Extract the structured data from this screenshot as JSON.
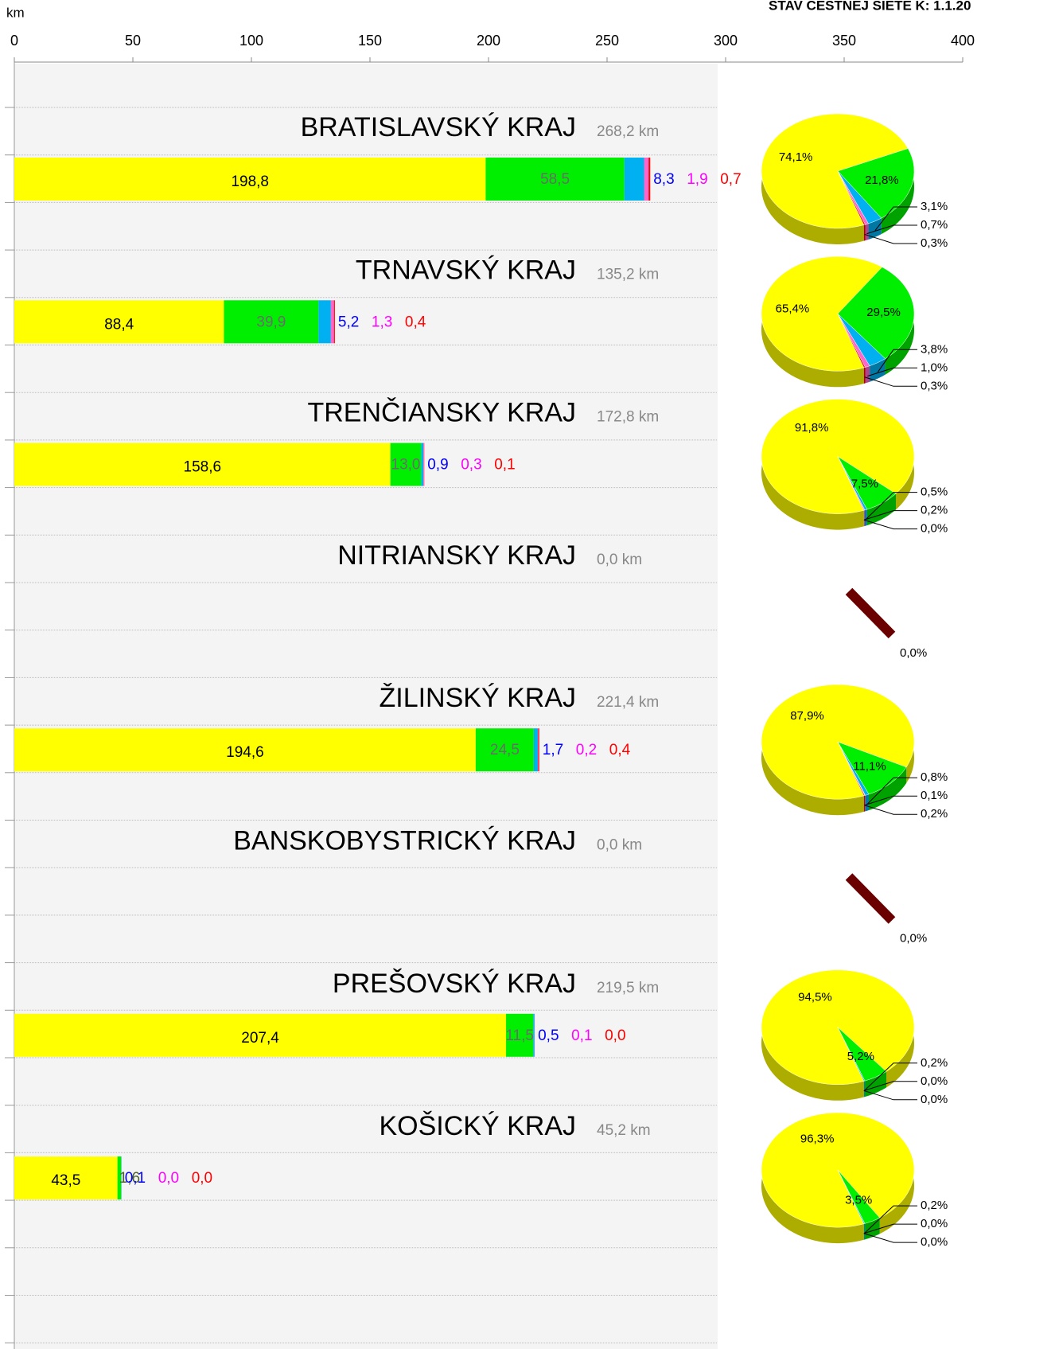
{
  "chart_data": {
    "type": "bar",
    "title": "STAV CESTNEJ SIETE K: 1.1.20",
    "x_label": "km",
    "xlim": [
      0,
      400
    ],
    "xticks": [
      0,
      50,
      100,
      150,
      200,
      250,
      300,
      350,
      400
    ],
    "categories": [
      "BRATISLAVSKÝ KRAJ",
      "TRNAVSKÝ KRAJ",
      "TRENČIANSKY KRAJ",
      "NITRIANSKY KRAJ",
      "ŽILINSKÝ KRAJ",
      "BANSKOBYSTRICKÝ KRAJ",
      "PREŠOVSKÝ KRAJ",
      "KOŠICKÝ KRAJ"
    ],
    "totals": [
      "268,2 km",
      "135,2 km",
      "172,8 km",
      "0,0 km",
      "221,4 km",
      "0,0 km",
      "219,5 km",
      "45,2 km"
    ],
    "series": [
      {
        "color": "#ffff00",
        "label_color": "#000000",
        "values": [
          198.8,
          88.4,
          158.6,
          null,
          194.6,
          null,
          207.4,
          43.5
        ],
        "value_labels": [
          "198,8",
          "88,4",
          "158,6",
          null,
          "194,6",
          null,
          "207,4",
          "43,5"
        ]
      },
      {
        "color": "#00ee00",
        "label_color": "#6b6b6b",
        "values": [
          58.5,
          39.9,
          13.0,
          null,
          24.5,
          null,
          11.5,
          1.6
        ],
        "value_labels": [
          "58,5",
          "39,9",
          "13,0",
          null,
          "24,5",
          null,
          "11,5",
          "1,6"
        ]
      },
      {
        "color": "#00b0f0",
        "label_color": "#0000ff",
        "values": [
          8.3,
          5.2,
          0.9,
          null,
          1.7,
          null,
          0.5,
          0.1
        ],
        "value_labels": [
          "8,3",
          "5,2",
          "0,9",
          null,
          "1,7",
          null,
          "0,5",
          "0,1"
        ]
      },
      {
        "color": "#ff66cc",
        "label_color": "#ff00ff",
        "values": [
          1.9,
          1.3,
          0.3,
          null,
          0.2,
          null,
          0.1,
          0.0
        ],
        "value_labels": [
          "1,9",
          "1,3",
          "0,3",
          null,
          "0,2",
          null,
          "0,1",
          "0,0"
        ]
      },
      {
        "color": "#ff0000",
        "label_color": "#ff0000",
        "values": [
          0.7,
          0.4,
          0.1,
          null,
          0.4,
          null,
          0.0,
          0.0
        ],
        "value_labels": [
          "0,7",
          "0,4",
          "0,1",
          null,
          "0,4",
          null,
          "0,0",
          "0,0"
        ]
      }
    ],
    "pies": [
      {
        "values": [
          74.1,
          21.8,
          3.1,
          0.7,
          0.3
        ],
        "labels": [
          "74,1%",
          "21,8%",
          "3,1%",
          "0,7%",
          "0,3%"
        ]
      },
      {
        "values": [
          65.4,
          29.5,
          3.8,
          1.0,
          0.3
        ],
        "labels": [
          "65,4%",
          "29,5%",
          "3,8%",
          "1,0%",
          "0,3%"
        ]
      },
      {
        "values": [
          91.8,
          7.5,
          0.5,
          0.2,
          0.0
        ],
        "labels": [
          "91,8%",
          "7,5%",
          "0,5%",
          "0,2%",
          "0,0%"
        ]
      },
      {
        "values": [
          0.0
        ],
        "labels": [
          "0,0%"
        ]
      },
      {
        "values": [
          87.9,
          11.1,
          0.8,
          0.1,
          0.2
        ],
        "labels": [
          "87,9%",
          "11,1%",
          "0,8%",
          "0,1%",
          "0,2%"
        ]
      },
      {
        "values": [
          0.0
        ],
        "labels": [
          "0,0%"
        ]
      },
      {
        "values": [
          94.5,
          5.2,
          0.2,
          0.0,
          0.0
        ],
        "labels": [
          "94,5%",
          "5,2%",
          "0,2%",
          "0,0%",
          "0,0%"
        ]
      },
      {
        "values": [
          96.3,
          3.5,
          0.2,
          0.0,
          0.0
        ],
        "labels": [
          "96,3%",
          "3,5%",
          "0,2%",
          "0,0%",
          "0,0%"
        ]
      }
    ]
  }
}
